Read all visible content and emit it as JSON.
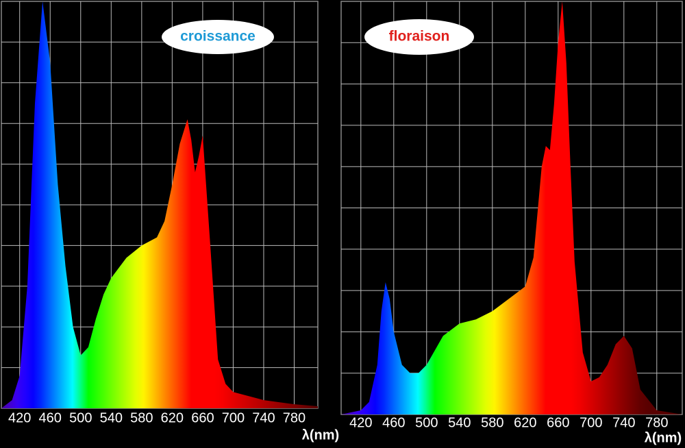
{
  "chart_data": [
    {
      "type": "area",
      "annotation": "croissance",
      "xlabel": "λ(nm)",
      "x": [
        396,
        410,
        420,
        430,
        440,
        450,
        460,
        470,
        480,
        490,
        500,
        510,
        520,
        530,
        540,
        560,
        580,
        600,
        610,
        620,
        630,
        640,
        645,
        650,
        655,
        660,
        670,
        680,
        690,
        700,
        740,
        780,
        811
      ],
      "values": [
        0,
        2,
        8,
        30,
        75,
        100,
        85,
        55,
        35,
        20,
        13,
        15,
        22,
        28,
        32,
        37,
        40,
        42,
        46,
        55,
        65,
        71,
        66,
        58,
        62,
        67,
        40,
        12,
        6,
        4,
        2,
        1,
        0.5
      ],
      "xlim": [
        396,
        811
      ],
      "xticks": [
        420,
        460,
        500,
        540,
        580,
        620,
        660,
        700,
        740,
        780
      ],
      "ylim": [
        0,
        100
      ],
      "grid": true
    },
    {
      "type": "area",
      "annotation": "floraison",
      "xlabel": "λ(nm)",
      "x": [
        396,
        420,
        430,
        440,
        445,
        450,
        455,
        460,
        470,
        480,
        490,
        500,
        520,
        540,
        560,
        580,
        600,
        620,
        630,
        640,
        645,
        650,
        655,
        660,
        665,
        670,
        675,
        680,
        690,
        700,
        710,
        720,
        730,
        740,
        750,
        760,
        780,
        811
      ],
      "values": [
        0,
        1,
        3,
        12,
        25,
        32,
        28,
        20,
        12,
        10,
        10,
        12,
        19,
        22,
        23,
        25,
        28,
        31,
        38,
        60,
        65,
        64,
        75,
        90,
        100,
        85,
        60,
        37,
        15,
        8,
        9,
        12,
        17,
        19,
        16,
        6,
        1,
        0
      ],
      "xlim": [
        396,
        811
      ],
      "xticks": [
        420,
        460,
        500,
        540,
        580,
        620,
        660,
        700,
        740,
        780
      ],
      "ylim": [
        0,
        100
      ],
      "grid": true
    }
  ]
}
